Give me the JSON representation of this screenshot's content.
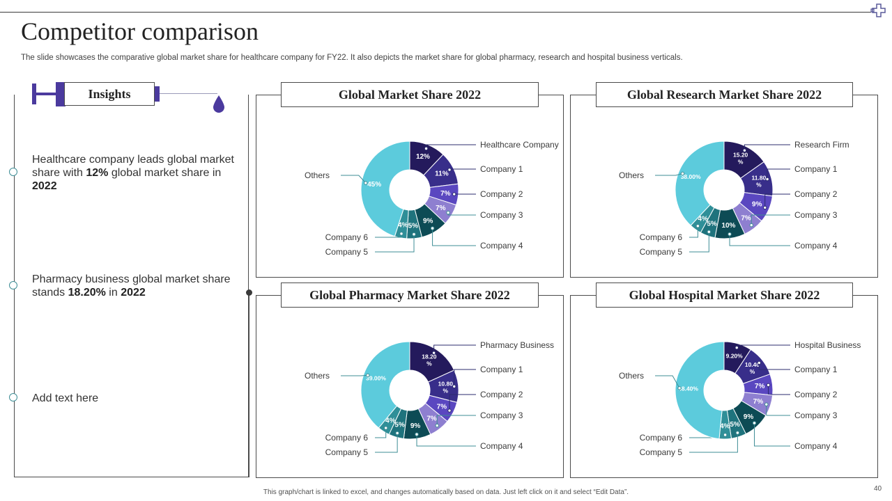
{
  "title": "Competitor comparison",
  "subtitle": "The slide showcases the comparative global market share for healthcare company for FY22. It also depicts the market share for global pharmacy, research and hospital business verticals.",
  "insights": {
    "label": "Insights",
    "items": [
      {
        "pre": "Healthcare company leads global market share with ",
        "b1": "12%",
        "mid": " global market share in ",
        "b2": "2022"
      },
      {
        "pre": "Pharmacy business global market share stands ",
        "b1": "18.20%",
        "mid": " in ",
        "b2": "2022"
      },
      {
        "pre": "Add text here",
        "b1": "",
        "mid": "",
        "b2": ""
      }
    ]
  },
  "colors": {
    "slices": [
      "#241a5c",
      "#382e8a",
      "#5a47c0",
      "#8e7fd0",
      "#0d4b55",
      "#1f737d",
      "#2f8f98",
      "#5ccbdc"
    ],
    "leader": "#2b2b6e",
    "teal_leader": "#3e8d95"
  },
  "chart_data": [
    {
      "type": "pie",
      "title": "Global Market Share 2022",
      "categories": [
        "Healthcare Company",
        "Company 1",
        "Company 2",
        "Company 3",
        "Company 4",
        "Company 5",
        "Company 6",
        "Others"
      ],
      "values": [
        12,
        11,
        7,
        7,
        9,
        5,
        4,
        45
      ],
      "labels": [
        "12%",
        "11%",
        "7%",
        "7%",
        "9%",
        "5%",
        "4%",
        "45%"
      ]
    },
    {
      "type": "pie",
      "title": "Global Research Market Share 2022",
      "categories": [
        "Research Firm",
        "Company 1",
        "Company 2",
        "Company 3",
        "Company 4",
        "Company 5",
        "Company 6",
        "Others"
      ],
      "values": [
        15.2,
        11.8,
        9,
        7,
        10,
        5,
        4,
        38
      ],
      "labels": [
        "15.20 %",
        "11.80 %",
        "9%",
        "7%",
        "10%",
        "5%",
        "4%",
        "38.00%"
      ]
    },
    {
      "type": "pie",
      "title": "Global Pharmacy Market Share 2022",
      "categories": [
        "Pharmacy Business",
        "Company 1",
        "Company 2",
        "Company 3",
        "Company 4",
        "Company 5",
        "Company 6",
        "Others"
      ],
      "values": [
        18.2,
        10.8,
        7,
        7,
        9,
        5,
        4,
        39
      ],
      "labels": [
        "18.20 %",
        "10.80 %",
        "7%",
        "7%",
        "9%",
        "5%",
        "4%",
        "39.00%"
      ]
    },
    {
      "type": "pie",
      "title": "Global Hospital Market Share 2022",
      "categories": [
        "Hospital Business",
        "Company 1",
        "Company 2",
        "Company 3",
        "Company 4",
        "Company 5",
        "Company 6",
        "Others"
      ],
      "values": [
        9.2,
        10.4,
        7,
        7,
        9,
        5,
        4,
        48.4
      ],
      "labels": [
        "9.20%",
        "10.40 %",
        "7%",
        "7%",
        "9%",
        "5%",
        "4%",
        "48.40%"
      ]
    }
  ],
  "footer": "This graph/chart is linked to excel, and changes automatically based on data. Just left click on it and select “Edit Data”.",
  "page_number": "40"
}
